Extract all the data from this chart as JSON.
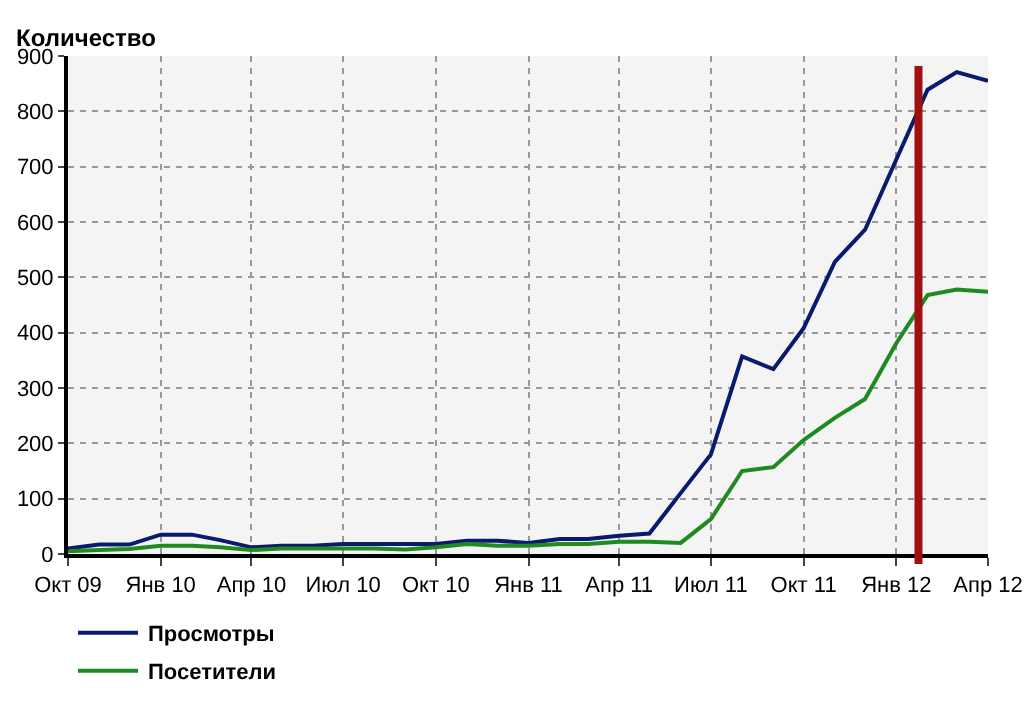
{
  "chart_data": {
    "type": "line",
    "ylabel": "Количество",
    "x": [
      "2009-10",
      "2009-11",
      "2009-12",
      "2010-01",
      "2010-02",
      "2010-03",
      "2010-04",
      "2010-05",
      "2010-06",
      "2010-07",
      "2010-08",
      "2010-09",
      "2010-10",
      "2010-11",
      "2010-12",
      "2011-01",
      "2011-02",
      "2011-03",
      "2011-04",
      "2011-05",
      "2011-06",
      "2011-07",
      "2011-08",
      "2011-09",
      "2011-10",
      "2011-11",
      "2011-12",
      "2012-01",
      "2012-02",
      "2012-03",
      "2012-04"
    ],
    "series": [
      {
        "name": "Просмотры",
        "color": "#0a1a6e",
        "values": [
          10,
          17,
          17,
          35,
          35,
          25,
          12,
          15,
          15,
          18,
          18,
          18,
          18,
          24,
          24,
          20,
          27,
          27,
          33,
          37,
          110,
          180,
          357,
          334,
          408,
          528,
          586,
          713,
          839,
          871,
          855
        ]
      },
      {
        "name": "Посетители",
        "color": "#1f8a1f",
        "values": [
          5,
          7,
          9,
          15,
          15,
          12,
          7,
          10,
          10,
          10,
          10,
          8,
          12,
          18,
          15,
          15,
          18,
          18,
          22,
          22,
          20,
          63,
          150,
          157,
          206,
          246,
          280,
          381,
          468,
          478,
          474
        ]
      }
    ],
    "xlim": [
      "2009-10-01",
      "2012-04-01"
    ],
    "xticks": [
      {
        "value": "2009-10",
        "label": "Окт 09"
      },
      {
        "value": "2010-01",
        "label": "Янв 10"
      },
      {
        "value": "2010-04",
        "label": "Апр 10"
      },
      {
        "value": "2010-07",
        "label": "Июл 10"
      },
      {
        "value": "2010-10",
        "label": "Окт 10"
      },
      {
        "value": "2011-01",
        "label": "Янв 11"
      },
      {
        "value": "2011-04",
        "label": "Апр 11"
      },
      {
        "value": "2011-07",
        "label": "Июл 11"
      },
      {
        "value": "2011-10",
        "label": "Окт 11"
      },
      {
        "value": "2012-01",
        "label": "Янв 12"
      },
      {
        "value": "2012-04",
        "label": "Апр 12"
      }
    ],
    "ylim": [
      0,
      900
    ],
    "yticks": [
      0,
      100,
      200,
      300,
      400,
      500,
      600,
      700,
      800,
      900
    ],
    "ref_lines": [
      {
        "axis": "x",
        "value": "2012-01-23",
        "color": "#a01010"
      }
    ],
    "grid": true,
    "legend": "bottom left",
    "marker": "none",
    "line_style": "solid"
  }
}
